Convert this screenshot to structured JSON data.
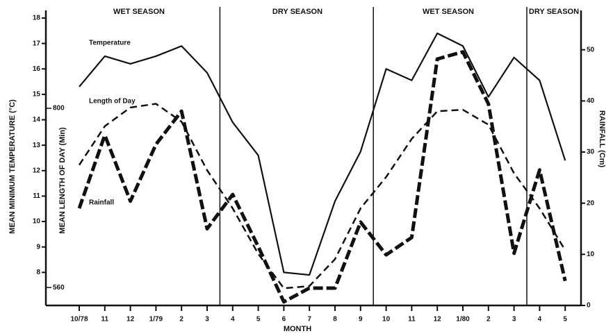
{
  "chart_data": {
    "type": "line",
    "x_label": "MONTH",
    "y_label": "MEAN MINIMUM TEMPERATURE (°C)",
    "y3_label": "MEAN LENGTH OF DAY (Min)",
    "y2_label": "RAINFALL (Cm)",
    "seasons": [
      "WET SEASON",
      "DRY SEASON",
      "WET SEASON",
      "DRY SEASON"
    ],
    "categories": [
      "10/78",
      "11",
      "12",
      "1/79",
      "2",
      "3",
      "4",
      "5",
      "6",
      "7",
      "8",
      "9",
      "10",
      "11",
      "12",
      "1/80",
      "2",
      "3",
      "4",
      "5"
    ],
    "series": [
      {
        "name": "Temperature",
        "color": "#111111",
        "line_style": "solid",
        "axis": "y",
        "values": [
          15.3,
          16.5,
          16.2,
          16.5,
          16.9,
          15.85,
          13.9,
          12.6,
          8.0,
          7.9,
          10.8,
          12.75,
          16.0,
          15.55,
          17.4,
          16.9,
          14.9,
          16.45,
          15.55,
          12.4
        ]
      },
      {
        "name": "Length of Day",
        "color": "#111111",
        "line_style": "dashed",
        "axis": "y3",
        "values": [
          724,
          776,
          801,
          806,
          782,
          717,
          666,
          605,
          559,
          562,
          598,
          666,
          708,
          759,
          796,
          798,
          778,
          713,
          666,
          610
        ]
      },
      {
        "name": "Rainfall",
        "color": "#111111",
        "line_style": "thick-dashed",
        "axis": "y2",
        "values": [
          19.0,
          33.3,
          20.4,
          31.5,
          38.0,
          15.0,
          21.7,
          11.5,
          0.7,
          3.4,
          3.4,
          16.3,
          9.9,
          13.3,
          48.2,
          49.6,
          39.4,
          10.2,
          26.5,
          4.8
        ]
      }
    ],
    "ylim": [
      6.7,
      18.3
    ],
    "yticks": [
      8,
      9,
      10,
      11,
      12,
      13,
      14,
      15,
      16,
      17,
      18
    ],
    "y3lim": [
      536,
      931
    ],
    "y3ticks": [
      560,
      800
    ],
    "y2lim": [
      0,
      57.7
    ],
    "y2ticks": [
      0,
      10,
      20,
      30,
      40,
      50
    ]
  }
}
